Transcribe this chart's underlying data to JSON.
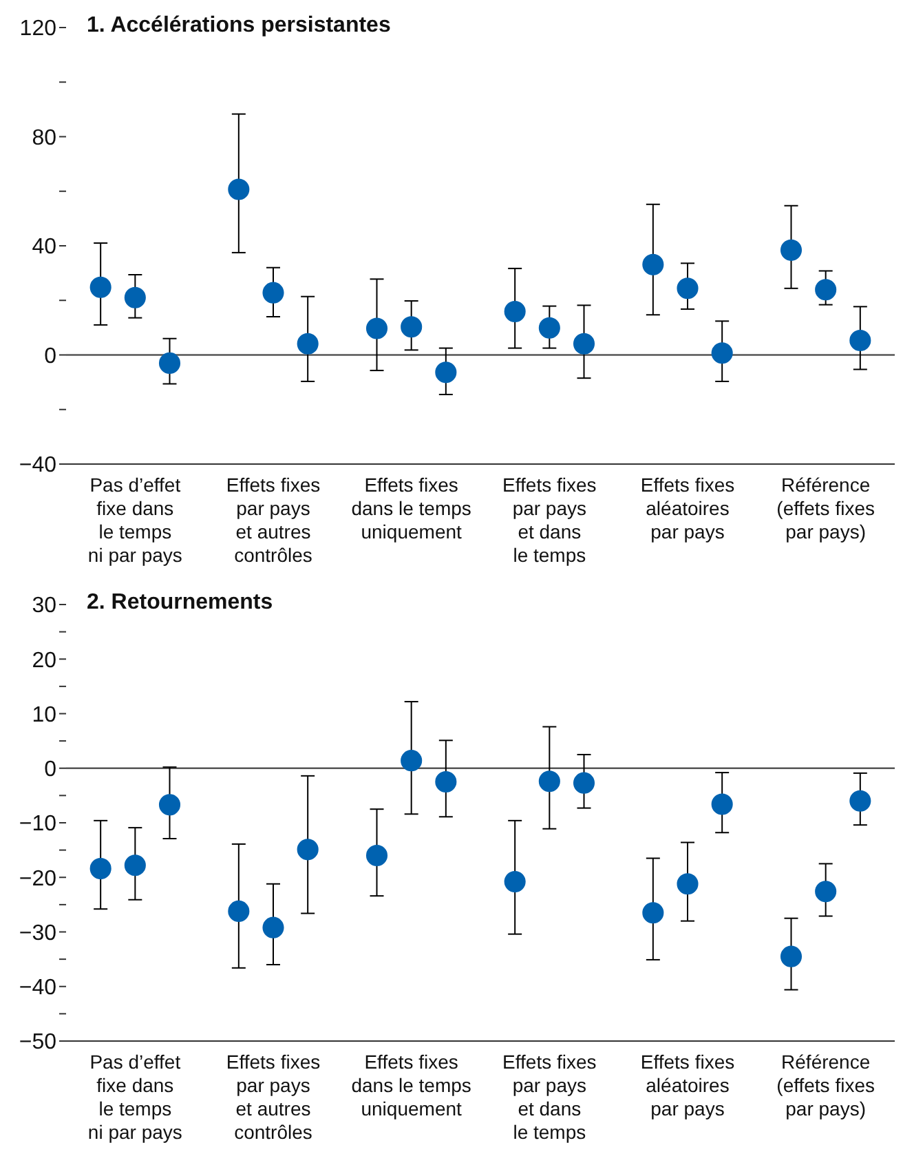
{
  "chart_data": [
    {
      "type": "scatter",
      "title": "1. Accélérations persistantes",
      "categories": [
        "Pas d’effet\nfixe dans\nle temps\nni par pays",
        "Effets fixes\npar pays\net autres\ncontrôles",
        "Effets fixes\ndans le temps\nuniquement",
        "Effets fixes\npar pays\net dans\nle temps",
        "Effets fixes\naléatoires\npar pays",
        "Référence\n(effets fixes\npar pays)"
      ],
      "marker": "circle",
      "ylim": [
        -40,
        120
      ],
      "yticks": [
        -40,
        {
          "value": -20,
          "label": null
        },
        0,
        {
          "value": 20,
          "label": null
        },
        40,
        {
          "value": 60,
          "label": null
        },
        80,
        {
          "value": 100,
          "label": null
        },
        120
      ],
      "ref_lines": [
        {
          "axis": "y",
          "value": 0
        }
      ],
      "series": [
        {
          "color": "#0062b0",
          "values": [
            24.8,
            60.7,
            9.7,
            15.9,
            33.1,
            38.4
          ],
          "errors": [
            [
              11,
              41
            ],
            [
              37.5,
              88.3
            ],
            [
              -5.7,
              27.8
            ],
            [
              2.5,
              31.7
            ],
            [
              14.7,
              55.2
            ],
            [
              24.4,
              54.7
            ]
          ]
        },
        {
          "color": "#0062b0",
          "values": [
            21,
            22.8,
            10.3,
            9.9,
            24.4,
            23.9
          ],
          "errors": [
            [
              13.6,
              29.4
            ],
            [
              14,
              32
            ],
            [
              1.8,
              19.8
            ],
            [
              2.5,
              17.9
            ],
            [
              16.8,
              33.6
            ],
            [
              18.4,
              30.8
            ]
          ]
        },
        {
          "color": "#0062b0",
          "values": [
            -3,
            4.1,
            -6.4,
            4.1,
            0.7,
            5.3
          ],
          "errors": [
            [
              -10.6,
              6
            ],
            [
              -9.7,
              21.4
            ],
            [
              -14.5,
              2.5
            ],
            [
              -8.5,
              18.2
            ],
            [
              -9.7,
              12.4
            ],
            [
              -5.3,
              17.7
            ]
          ]
        }
      ]
    },
    {
      "type": "scatter",
      "title": "2. Retournements",
      "categories": [
        "Pas d’effet\nfixe dans\nle temps\nni par pays",
        "Effets fixes\npar pays\net autres\ncontrôles",
        "Effets fixes\ndans le temps\nuniquement",
        "Effets fixes\npar pays\net dans\nle temps",
        "Effets fixes\naléatoires\npar pays",
        "Référence\n(effets fixes\npar pays)"
      ],
      "marker": "circle",
      "ylim": [
        -50,
        30
      ],
      "yticks": [
        -50,
        {
          "value": -45,
          "label": null
        },
        -40,
        {
          "value": -35,
          "label": null
        },
        -30,
        {
          "value": -25,
          "label": null
        },
        -20,
        {
          "value": -15,
          "label": null
        },
        -10,
        {
          "value": -5,
          "label": null
        },
        0,
        {
          "value": 5,
          "label": null
        },
        10,
        {
          "value": 15,
          "label": null
        },
        20,
        {
          "value": 25,
          "label": null
        },
        30
      ],
      "ref_lines": [
        {
          "axis": "y",
          "value": 0
        }
      ],
      "series": [
        {
          "color": "#0062b0",
          "values": [
            -18.4,
            -26.2,
            -16,
            -20.8,
            -26.5,
            -34.5
          ],
          "errors": [
            [
              -25.8,
              -9.6
            ],
            [
              -36.6,
              -13.9
            ],
            [
              -23.4,
              -7.5
            ],
            [
              -30.4,
              -9.6
            ],
            [
              -35.1,
              -16.5
            ],
            [
              -40.6,
              -27.5
            ]
          ]
        },
        {
          "color": "#0062b0",
          "values": [
            -17.8,
            -29.2,
            1.4,
            -2.4,
            -21.2,
            -22.6
          ],
          "errors": [
            [
              -24.1,
              -10.9
            ],
            [
              -36,
              -21.2
            ],
            [
              -8.4,
              12.2
            ],
            [
              -11.1,
              7.6
            ],
            [
              -28,
              -13.6
            ],
            [
              -27.1,
              -17.5
            ]
          ]
        },
        {
          "color": "#0062b0",
          "values": [
            -6.7,
            -14.9,
            -2.5,
            -2.7,
            -6.6,
            -6
          ],
          "errors": [
            [
              -12.9,
              0.2
            ],
            [
              -26.6,
              -1.4
            ],
            [
              -8.9,
              5.1
            ],
            [
              -7.3,
              2.5
            ],
            [
              -11.8,
              -0.8
            ],
            [
              -10.4,
              -0.9
            ]
          ]
        }
      ]
    }
  ]
}
